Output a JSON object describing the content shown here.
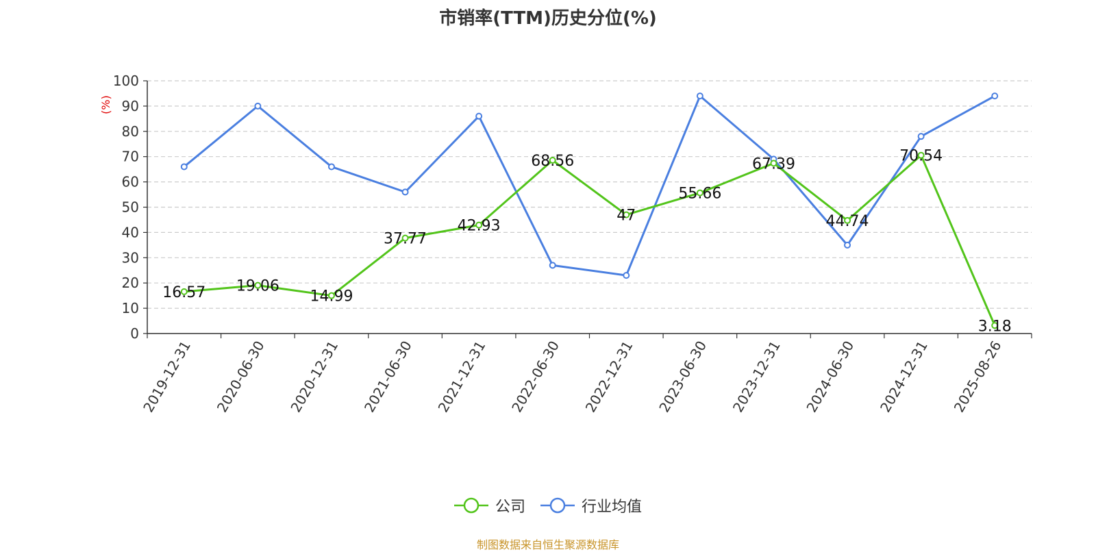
{
  "title": "市销率(TTM)历史分位(%)",
  "source_text": "制图数据来自恒生聚源数据库",
  "colors": {
    "company": "#52c41a",
    "industry": "#4a7fe0",
    "axis_unit": "#e00000",
    "source": "#c8942a"
  },
  "chart_data": {
    "type": "line",
    "title": "市销率(TTM)历史分位(%)",
    "xlabel": "",
    "ylabel": "(%)",
    "ylim": [
      0,
      100
    ],
    "yticks": [
      0,
      10,
      20,
      30,
      40,
      50,
      60,
      70,
      80,
      90,
      100
    ],
    "grid": true,
    "legend_position": "bottom",
    "categories": [
      "2019-12-31",
      "2020-06-30",
      "2020-12-31",
      "2021-06-30",
      "2021-12-31",
      "2022-06-30",
      "2022-12-31",
      "2023-06-30",
      "2023-12-31",
      "2024-06-30",
      "2024-12-31",
      "2025-08-26"
    ],
    "series": [
      {
        "name": "公司",
        "values": [
          16.57,
          19.06,
          14.99,
          37.77,
          42.93,
          68.56,
          47,
          55.66,
          67.39,
          44.74,
          70.54,
          3.18
        ],
        "labels": [
          "16.57",
          "19.06",
          "14.99",
          "37.77",
          "42.93",
          "68.56",
          "47",
          "55.66",
          "67.39",
          "44.74",
          "70.54",
          "3.18"
        ]
      },
      {
        "name": "行业均值",
        "values": [
          66,
          90,
          66,
          56,
          86,
          27,
          23,
          94,
          69,
          35,
          78,
          94
        ]
      }
    ]
  }
}
